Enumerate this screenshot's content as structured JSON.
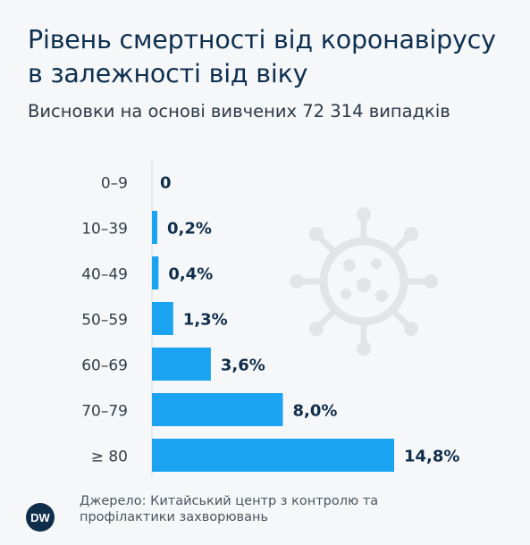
{
  "header": {
    "title": "Рівень смертності від коронавірусу в залежності від віку",
    "subtitle": "Висновки на основі вивчених 72 314 випадків"
  },
  "footer": {
    "source": "Джерело: Китайський центр з контролю та профілактики захворювань",
    "logo_text": "DW"
  },
  "colors": {
    "bar": "#1aa3f0",
    "background": "#f6f7f8",
    "text_dark": "#0f2e4c",
    "virus_icon": "#e2e5e8"
  },
  "decor": {
    "icon": "coronavirus-icon"
  },
  "chart_data": {
    "type": "bar",
    "orientation": "horizontal",
    "categories": [
      "0–9",
      "10–39",
      "40–49",
      "50–59",
      "60–69",
      "70–79",
      "≥ 80"
    ],
    "values": [
      0,
      0.2,
      0.4,
      1.3,
      3.6,
      8.0,
      14.8
    ],
    "value_labels": [
      "0",
      "0,2%",
      "0,4%",
      "1,3%",
      "3,6%",
      "8,0%",
      "14,8%"
    ],
    "unit": "%",
    "xlim": [
      0,
      14.8
    ],
    "grid": false,
    "legend": "none"
  }
}
